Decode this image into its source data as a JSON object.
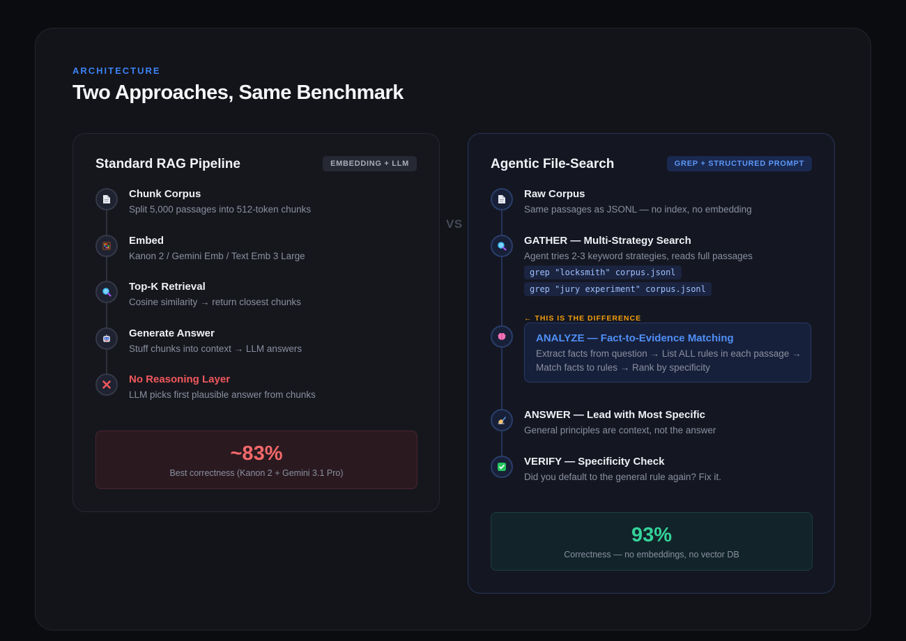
{
  "eyebrow": "ARCHITECTURE",
  "title": "Two Approaches, Same Benchmark",
  "vs": "VS",
  "left": {
    "title": "Standard RAG Pipeline",
    "badge": "EMBEDDING + LLM",
    "steps": [
      {
        "icon": "document-icon",
        "title": "Chunk Corpus",
        "desc": "Split 5,000 passages into 512-token chunks"
      },
      {
        "icon": "abacus-icon",
        "title": "Embed",
        "desc": "Kanon 2 / Gemini Emb / Text Emb 3 Large"
      },
      {
        "icon": "magnifier-icon",
        "title": "Top-K Retrieval",
        "desc": "Cosine similarity → return closest chunks"
      },
      {
        "icon": "robot-icon",
        "title": "Generate Answer",
        "desc": "Stuff chunks into context → LLM answers"
      },
      {
        "icon": "cross-icon",
        "title": "No Reasoning Layer",
        "desc": "LLM picks first plausible answer from chunks"
      }
    ],
    "result": {
      "value": "~83%",
      "caption": "Best correctness (Kanon 2 + Gemini 3.1 Pro)"
    }
  },
  "right": {
    "title": "Agentic File-Search",
    "badge": "GREP + STRUCTURED PROMPT",
    "steps": [
      {
        "icon": "document-icon",
        "title": "Raw Corpus",
        "desc": "Same passages as JSONL — no index, no embedding"
      },
      {
        "icon": "magnifier-icon",
        "title": "GATHER — Multi-Strategy Search",
        "desc": "Agent tries 2-3 keyword strategies, reads full passages",
        "code": [
          "grep \"locksmith\" corpus.jsonl",
          "grep \"jury experiment\" corpus.jsonl"
        ]
      },
      {
        "icon": "brain-icon",
        "label": "← THIS IS THE DIFFERENCE",
        "title": "ANALYZE — Fact-to-Evidence Matching",
        "desc": "Extract facts from question → List ALL rules in each passage → Match facts to rules → Rank by specificity"
      },
      {
        "icon": "writing-hand-icon",
        "title": "ANSWER — Lead with Most Specific",
        "desc": "General principles are context, not the answer"
      },
      {
        "icon": "check-icon",
        "title": "VERIFY — Specificity Check",
        "desc": "Did you default to the general rule again? Fix it."
      }
    ],
    "result": {
      "value": "93%",
      "caption": "Correctness — no embeddings, no vector DB"
    }
  },
  "colors": {
    "accent": "#3d82f6",
    "red": "#f2585c",
    "green": "#34d399",
    "amber": "#f59e0b"
  }
}
